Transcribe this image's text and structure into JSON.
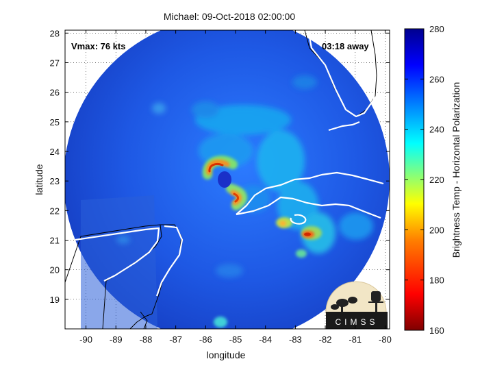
{
  "title": "Michael: 09-Oct-2018 02:00:00",
  "vmax_label": "Vmax: 76 kts",
  "time_away_label": "03:18 away",
  "x_axis": {
    "label": "longitude",
    "ticks": [
      "-90",
      "-89",
      "-88",
      "-87",
      "-86",
      "-85",
      "-84",
      "-83",
      "-82",
      "-81",
      "-80"
    ],
    "range": [
      -90.7,
      -79.85
    ]
  },
  "y_axis": {
    "label": "latitude",
    "ticks": [
      "19",
      "20",
      "21",
      "22",
      "23",
      "24",
      "25",
      "26",
      "27",
      "28"
    ],
    "range": [
      18.0,
      28.1
    ]
  },
  "colorbar": {
    "label": "Brightness Temp - Horizontal Polarization",
    "ticks": [
      "160",
      "180",
      "200",
      "220",
      "240",
      "260",
      "280"
    ],
    "range": [
      160,
      280
    ],
    "colors": [
      "#7f0000",
      "#ff0000",
      "#ff8000",
      "#ffff00",
      "#80ff80",
      "#00ffff",
      "#0080ff",
      "#0000ff",
      "#00008f"
    ]
  },
  "logo": {
    "text": "CIMSS"
  },
  "grid": "dotted",
  "scan_color_main": "#1f55e0",
  "coastline_color": "#ffffff"
}
